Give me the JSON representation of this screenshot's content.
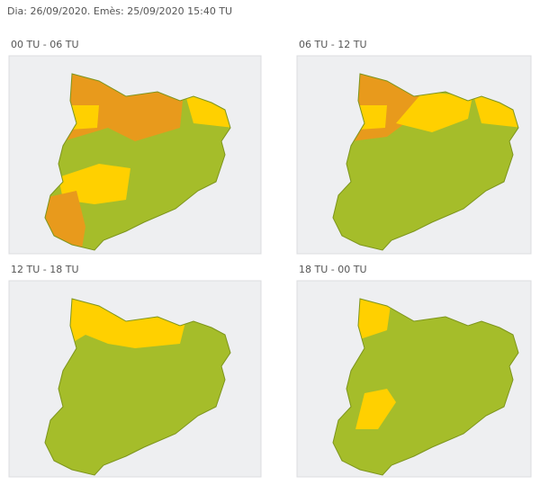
{
  "header": {
    "text": "Dia: 26/09/2020. Emès: 25/09/2020 15:40 TU"
  },
  "panels": [
    {
      "title": "00 TU - 06 TU"
    },
    {
      "title": "06 TU - 12 TU"
    },
    {
      "title": "12 TU - 18 TU"
    },
    {
      "title": "18 TU - 00 TU"
    }
  ]
}
